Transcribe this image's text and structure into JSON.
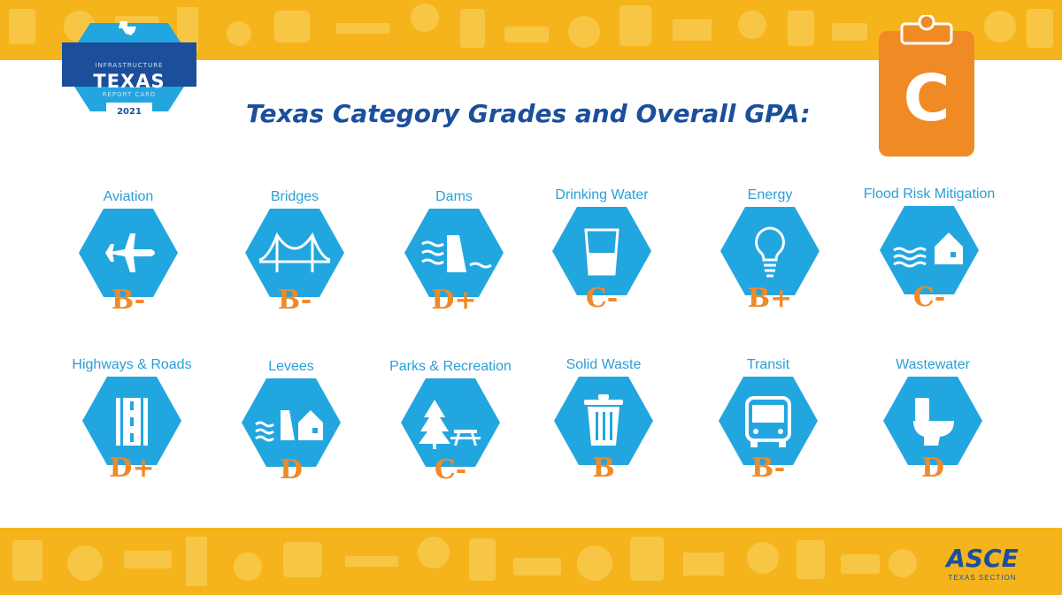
{
  "badge": {
    "line1": "INFRASTRUCTURE",
    "line2": "TEXAS",
    "line3": "REPORT CARD",
    "year": "2021"
  },
  "title": "Texas Category Grades and Overall GPA:",
  "overall_grade": "C",
  "colors": {
    "hexagon": "#22a6e0",
    "grade": "#ef8a2a",
    "title": "#1b4f9c",
    "label": "#2a9fd6",
    "band": "#f6b41c",
    "clipboard": "#f08a24"
  },
  "categories": [
    {
      "label": "Aviation",
      "grade": "B-",
      "icon": "airplane-icon"
    },
    {
      "label": "Bridges",
      "grade": "B-",
      "icon": "bridge-icon"
    },
    {
      "label": "Dams",
      "grade": "D+",
      "icon": "dam-icon"
    },
    {
      "label": "Drinking Water",
      "grade": "C-",
      "icon": "water-glass-icon"
    },
    {
      "label": "Energy",
      "grade": "B+",
      "icon": "lightbulb-icon"
    },
    {
      "label": "Flood Risk Mitigation",
      "grade": "C-",
      "icon": "flood-house-icon"
    },
    {
      "label": "Highways & Roads",
      "grade": "D+",
      "icon": "road-icon"
    },
    {
      "label": "Levees",
      "grade": "D",
      "icon": "levee-icon"
    },
    {
      "label": "Parks & Recreation",
      "grade": "C-",
      "icon": "tree-picnic-icon"
    },
    {
      "label": "Solid Waste",
      "grade": "B",
      "icon": "trash-can-icon"
    },
    {
      "label": "Transit",
      "grade": "B-",
      "icon": "bus-icon"
    },
    {
      "label": "Wastewater",
      "grade": "D",
      "icon": "toilet-icon"
    }
  ],
  "footer": {
    "logo_text": "ASCE",
    "logo_subtext": "TEXAS SECTION"
  }
}
